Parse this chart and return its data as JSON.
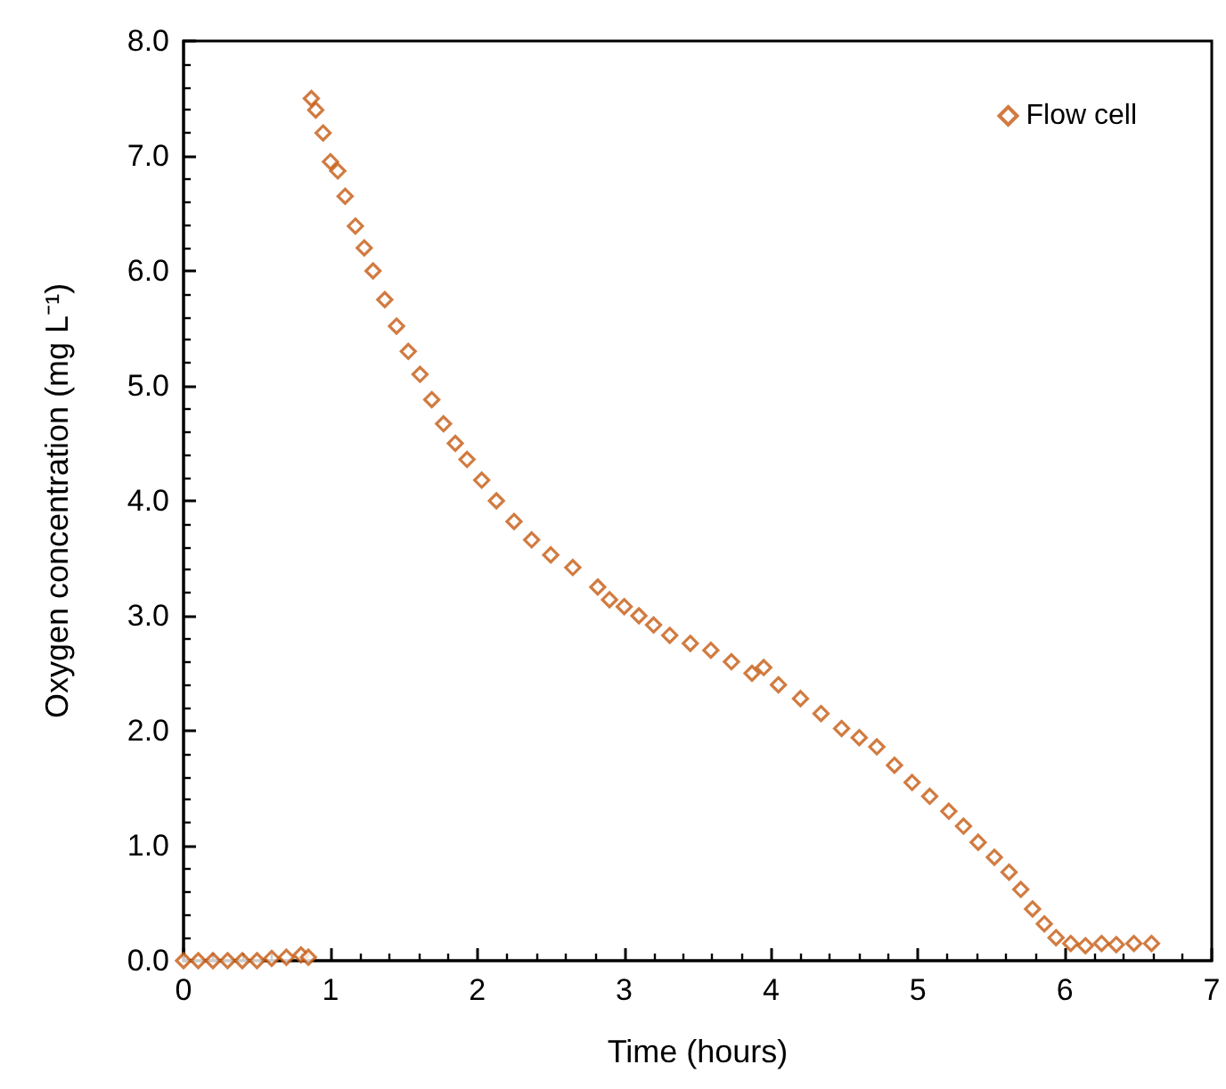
{
  "chart_data": {
    "type": "scatter",
    "xlabel": "Time (hours)",
    "ylabel": "Oxygen concentration (mg L⁻¹)",
    "xlim": [
      0,
      7
    ],
    "xticks": [
      0,
      1,
      2,
      3,
      4,
      5,
      6,
      7
    ],
    "ylim": [
      0,
      8
    ],
    "yticks": [
      {
        "value": 0,
        "label": "0.0"
      },
      {
        "value": 1,
        "label": "1.0"
      },
      {
        "value": 2,
        "label": "2.0"
      },
      {
        "value": 3,
        "label": "3.0"
      },
      {
        "value": 4,
        "label": "4.0"
      },
      {
        "value": 5,
        "label": "5.0"
      },
      {
        "value": 6,
        "label": "6.0"
      },
      {
        "value": 7,
        "label": "7.0"
      },
      {
        "value": 8,
        "label": "8.0"
      }
    ],
    "grid": false,
    "legend": "top right",
    "marker": "diamond",
    "series": [
      {
        "name": "Flow cell",
        "color": "#c55a11",
        "x": [
          0,
          0.1,
          0.2,
          0.3,
          0.4,
          0.5,
          0.6,
          0.7,
          0.8,
          0.85,
          0.87,
          0.9,
          0.95,
          1.0,
          1.05,
          1.1,
          1.17,
          1.23,
          1.29,
          1.37,
          1.45,
          1.53,
          1.61,
          1.69,
          1.77,
          1.85,
          1.93,
          2.03,
          2.13,
          2.25,
          2.37,
          2.5,
          2.65,
          2.82,
          2.9,
          3.0,
          3.1,
          3.2,
          3.31,
          3.45,
          3.59,
          3.73,
          3.87,
          3.95,
          4.05,
          4.2,
          4.34,
          4.48,
          4.6,
          4.72,
          4.84,
          4.96,
          5.08,
          5.21,
          5.31,
          5.41,
          5.52,
          5.62,
          5.7,
          5.78,
          5.86,
          5.94,
          6.04,
          6.14,
          6.25,
          6.35,
          6.47,
          6.59
        ],
        "values": [
          0,
          0,
          0,
          0,
          0,
          0,
          0.02,
          0.03,
          0.05,
          0.03,
          7.5,
          7.4,
          7.2,
          6.95,
          6.87,
          6.65,
          6.39,
          6.2,
          6.0,
          5.75,
          5.52,
          5.3,
          5.1,
          4.88,
          4.67,
          4.5,
          4.36,
          4.18,
          4.0,
          3.82,
          3.66,
          3.53,
          3.42,
          3.25,
          3.14,
          3.08,
          3.0,
          2.92,
          2.83,
          2.76,
          2.7,
          2.6,
          2.5,
          2.55,
          2.4,
          2.28,
          2.15,
          2.02,
          1.94,
          1.86,
          1.7,
          1.55,
          1.43,
          1.3,
          1.17,
          1.03,
          0.9,
          0.77,
          0.62,
          0.45,
          0.32,
          0.2,
          0.15,
          0.13,
          0.15,
          0.14,
          0.15,
          0.15
        ]
      }
    ]
  }
}
